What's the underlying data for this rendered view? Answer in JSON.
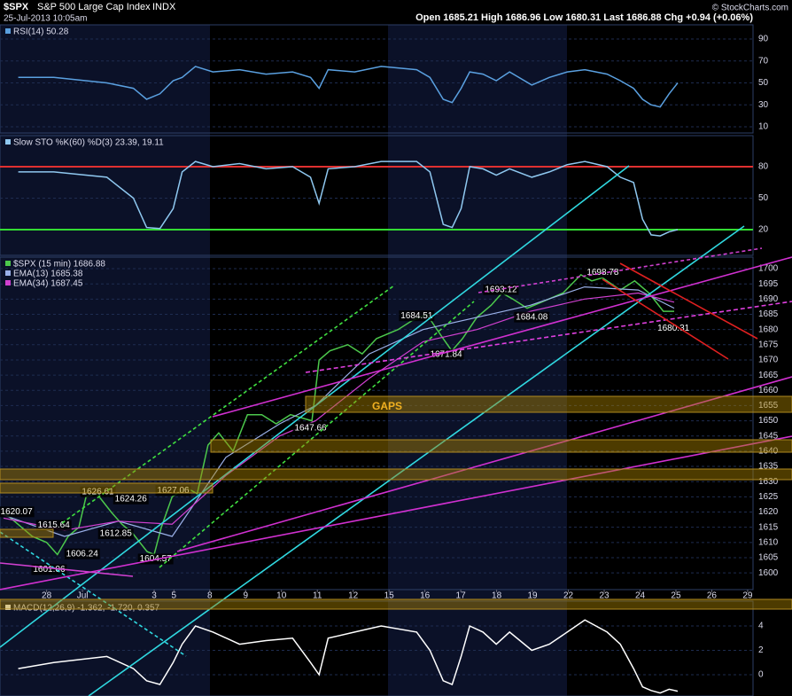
{
  "header": {
    "symbol": "$SPX",
    "name": "S&P 500 Large Cap Index",
    "exchange": "INDX",
    "datetime": "25-Jul-2013 10:05am",
    "quote": "Open 1685.21  High 1686.96  Low 1680.31  Last 1686.88  Chg +0.94 (+0.06%)",
    "source": "© StockCharts.com"
  },
  "chart_data": [
    {
      "type": "line",
      "ylim": [
        4.3,
        102.9
      ],
      "yticks": [
        10,
        30,
        50,
        70,
        90
      ],
      "series": [
        {
          "name": "RSI(14) 50.28",
          "color": "#5aa0e0",
          "x": [
            -0.79,
            0.2,
            1.68,
            2.42,
            2.79,
            3.16,
            3.53,
            3.78,
            4.15,
            4.64,
            5.38,
            6.12,
            6.86,
            7.36,
            7.6,
            7.85,
            8.59,
            9.33,
            10.32,
            10.69,
            11.06,
            11.31,
            11.56,
            11.8,
            12.17,
            12.54,
            12.91,
            13.53,
            14.02,
            14.52,
            15.01,
            15.63,
            16,
            16.37,
            16.62,
            16.86,
            17.11,
            17.36,
            17.6
          ],
          "values": [
            55,
            55,
            50,
            45,
            35,
            40,
            52,
            55,
            65,
            60,
            62,
            58,
            60,
            55,
            45,
            62,
            60,
            65,
            62,
            55,
            35,
            32,
            45,
            60,
            58,
            52,
            60,
            48,
            55,
            60,
            62,
            58,
            52,
            45,
            35,
            30,
            28,
            40,
            50
          ]
        }
      ]
    },
    {
      "type": "line",
      "ylim": [
        -4.5,
        109.6
      ],
      "yticks": [
        20,
        50,
        80
      ],
      "levels": [
        {
          "value": 80,
          "color": "#e03030"
        },
        {
          "value": 20,
          "color": "#33dd33"
        }
      ],
      "series": [
        {
          "name": "Slow STO %K(60) %D(3) 23.39, 19.11",
          "color": "#8fc8f0",
          "x": [
            -0.79,
            0.2,
            1.68,
            2.42,
            2.79,
            3.16,
            3.53,
            3.78,
            4.15,
            4.64,
            5.38,
            6.12,
            6.86,
            7.36,
            7.6,
            7.85,
            8.59,
            9.33,
            10.32,
            10.69,
            11.06,
            11.31,
            11.56,
            11.8,
            12.17,
            12.54,
            12.91,
            13.53,
            14.02,
            14.52,
            15.01,
            15.63,
            16,
            16.37,
            16.62,
            16.86,
            17.11,
            17.36,
            17.6
          ],
          "values": [
            75,
            75,
            70,
            50,
            22,
            21,
            40,
            75,
            85,
            80,
            83,
            78,
            80,
            70,
            45,
            78,
            80,
            85,
            85,
            75,
            25,
            22,
            40,
            80,
            78,
            72,
            78,
            70,
            75,
            82,
            85,
            80,
            70,
            65,
            30,
            15,
            14,
            18,
            20
          ]
        }
      ]
    },
    {
      "type": "line",
      "ylim": [
        1594.5,
        1703.8
      ],
      "yticks": [
        1600,
        1605,
        1610,
        1615,
        1620,
        1625,
        1630,
        1635,
        1640,
        1645,
        1650,
        1655,
        1660,
        1665,
        1670,
        1675,
        1680,
        1685,
        1690,
        1695,
        1700
      ],
      "xlim": [
        -1.3,
        19.7
      ],
      "xticks": [
        {
          "value": 0,
          "label": "28"
        },
        {
          "value": 1,
          "label": "Jul"
        },
        {
          "value": 3,
          "label": "3"
        },
        {
          "value": 3.55,
          "label": "5"
        },
        {
          "value": 4.55,
          "label": "8"
        },
        {
          "value": 5.55,
          "label": "9"
        },
        {
          "value": 6.55,
          "label": "10"
        },
        {
          "value": 7.55,
          "label": "11"
        },
        {
          "value": 8.55,
          "label": "12"
        },
        {
          "value": 9.55,
          "label": "15"
        },
        {
          "value": 10.55,
          "label": "16"
        },
        {
          "value": 11.55,
          "label": "17"
        },
        {
          "value": 12.55,
          "label": "18"
        },
        {
          "value": 13.55,
          "label": "19"
        },
        {
          "value": 14.55,
          "label": "22"
        },
        {
          "value": 15.55,
          "label": "23"
        },
        {
          "value": 16.55,
          "label": "24"
        },
        {
          "value": 17.55,
          "label": "25"
        },
        {
          "value": 18.55,
          "label": "26"
        },
        {
          "value": 19.55,
          "label": "29"
        }
      ],
      "gap_label": "GAPS",
      "series": [
        {
          "name": "$SPX (15 min) 1686.88",
          "color": "#4cc84c",
          "x": [
            -1.2,
            -0.8,
            -0.4,
            0,
            0.3,
            0.6,
            0.9,
            1.1,
            1.4,
            1.8,
            2.1,
            2.4,
            2.8,
            3.0,
            3.2,
            3.5,
            3.9,
            4.2,
            4.5,
            4.8,
            5.2,
            5.6,
            6.0,
            6.4,
            6.8,
            7.4,
            7.6,
            7.9,
            8.4,
            8.8,
            9.2,
            9.8,
            10.2,
            10.6,
            11.0,
            11.3,
            11.6,
            12.0,
            12.4,
            12.7,
            13.0,
            13.4,
            13.8,
            14.4,
            14.9,
            15.2,
            15.5,
            16.0,
            16.4,
            16.8,
            17.2,
            17.5
          ],
          "values": [
            1620,
            1616,
            1612,
            1610,
            1606,
            1612,
            1615,
            1625,
            1626,
            1620,
            1616,
            1613,
            1607,
            1606,
            1615,
            1625,
            1628,
            1626,
            1642,
            1646,
            1640,
            1652,
            1652,
            1649,
            1652,
            1650,
            1670,
            1673,
            1675,
            1672,
            1677,
            1680,
            1683,
            1685,
            1678,
            1673,
            1677,
            1684,
            1688,
            1692,
            1690,
            1687,
            1689,
            1692,
            1698,
            1696,
            1697,
            1693,
            1696,
            1692,
            1686,
            1686
          ]
        },
        {
          "name": "EMA(13) 1685.38",
          "color": "#9ab0e8",
          "x": [
            -1.2,
            0.5,
            2,
            3.5,
            5,
            6.5,
            7.5,
            9,
            10.5,
            12,
            13.5,
            15,
            16.5,
            17.5
          ],
          "values": [
            1619,
            1612,
            1617,
            1612,
            1638,
            1649,
            1655,
            1672,
            1680,
            1684,
            1688,
            1694,
            1693,
            1687
          ]
        },
        {
          "name": "EMA(34) 1687.45",
          "color": "#d040d0",
          "x": [
            -1.2,
            0.5,
            2,
            3.5,
            5,
            6.5,
            7.5,
            9,
            10.5,
            12,
            13.5,
            15,
            16.5,
            17.5
          ],
          "values": [
            1618,
            1614,
            1617,
            1616,
            1632,
            1645,
            1650,
            1664,
            1676,
            1680,
            1686,
            1690,
            1692,
            1689
          ]
        }
      ],
      "annotations": [
        {
          "x": -0.84,
          "y": 1620.07
        },
        {
          "x": 0.2,
          "y": 1615.64
        },
        {
          "x": 0.99,
          "y": 1606.24
        },
        {
          "x": 0.07,
          "y": 1601.06
        },
        {
          "x": 1.43,
          "y": 1626.61
        },
        {
          "x": 2.35,
          "y": 1624.26
        },
        {
          "x": 1.93,
          "y": 1612.85
        },
        {
          "x": 3.04,
          "y": 1604.57
        },
        {
          "x": 3.53,
          "y": 1627.06
        },
        {
          "x": 7.36,
          "y": 1647.66
        },
        {
          "x": 10.32,
          "y": 1684.51
        },
        {
          "x": 11.14,
          "y": 1671.84
        },
        {
          "x": 12.67,
          "y": 1693.12
        },
        {
          "x": 13.53,
          "y": 1684.08
        },
        {
          "x": 15.51,
          "y": 1698.78
        },
        {
          "x": 17.48,
          "y": 1680.31
        }
      ]
    },
    {
      "type": "line",
      "ylim": [
        -1.75,
        6.04
      ],
      "yticks": [
        0,
        2,
        4
      ],
      "series": [
        {
          "name": "MACD(12,26,9) -1.362, -1.720, 0.357",
          "color": "#ffffff",
          "x": [
            -0.79,
            0.2,
            1.68,
            2.42,
            2.79,
            3.16,
            3.53,
            3.78,
            4.15,
            4.64,
            5.38,
            6.12,
            6.86,
            7.36,
            7.6,
            7.85,
            8.59,
            9.33,
            10.32,
            10.69,
            11.06,
            11.31,
            11.56,
            11.8,
            12.17,
            12.54,
            12.91,
            13.53,
            14.02,
            14.52,
            15.01,
            15.63,
            16,
            16.37,
            16.62,
            16.86,
            17.11,
            17.36,
            17.6
          ],
          "values": [
            0.5,
            1,
            1.5,
            0.5,
            -0.5,
            -0.8,
            1,
            2.5,
            4,
            3.5,
            2.5,
            2.8,
            3,
            1,
            0,
            3,
            3.5,
            4,
            3.5,
            2,
            -0.5,
            -0.8,
            1.5,
            4,
            3.5,
            2.5,
            3.5,
            2,
            2.5,
            3.5,
            4.5,
            3.5,
            2.5,
            0.5,
            -1,
            -1.3,
            -1.5,
            -1.2,
            -1.36
          ]
        }
      ]
    }
  ]
}
